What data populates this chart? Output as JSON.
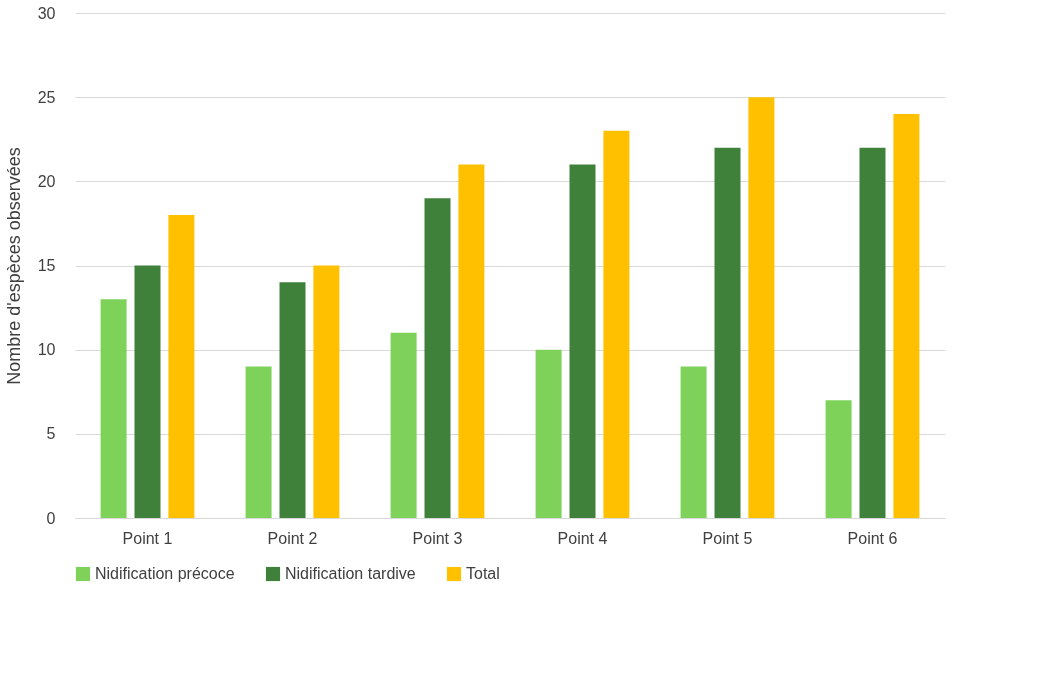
{
  "chart_data": {
    "type": "bar",
    "ylabel": "Nombre d'espèces observées",
    "categories": [
      "Point 1",
      "Point 2",
      "Point 3",
      "Point 4",
      "Point 5",
      "Point 6"
    ],
    "series": [
      {
        "name": "Nidification précoce",
        "color": "#7ed25a",
        "values": [
          13,
          9,
          11,
          10,
          9,
          7
        ]
      },
      {
        "name": "Nidification tardive",
        "color": "#3f803a",
        "values": [
          15,
          14,
          19,
          21,
          22,
          22
        ]
      },
      {
        "name": "Total",
        "color": "#ffc000",
        "values": [
          18,
          15,
          21,
          23,
          25,
          24
        ]
      }
    ],
    "ylim": [
      0,
      30
    ],
    "yticks": [
      0,
      5,
      10,
      15,
      20,
      25,
      30
    ],
    "grid": "y",
    "legend": "bottom"
  }
}
